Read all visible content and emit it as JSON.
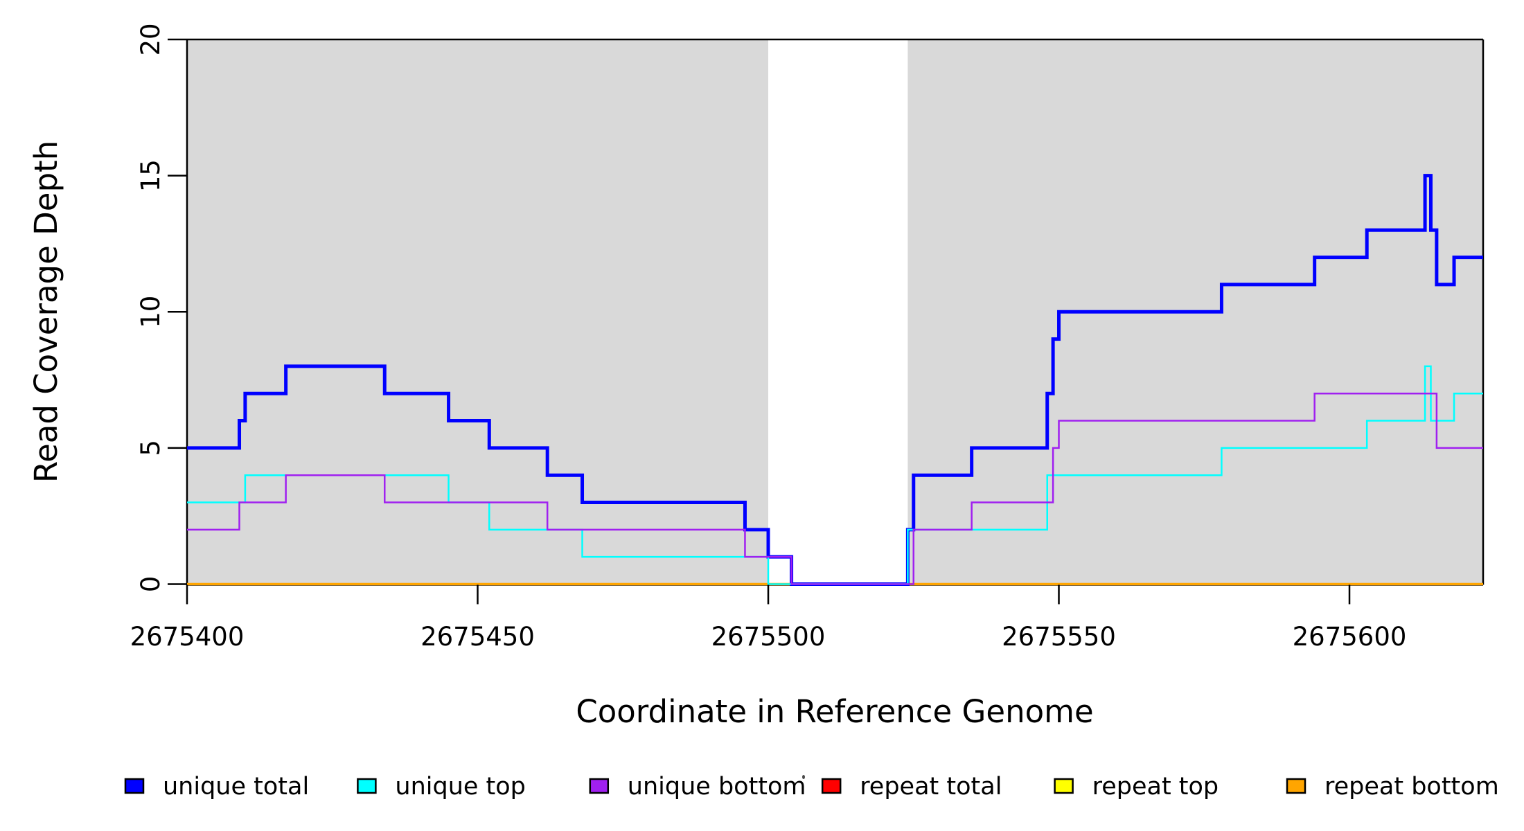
{
  "chart_data": {
    "type": "line",
    "subtype": "step-coverage",
    "title": "",
    "xlabel": "Coordinate in Reference Genome",
    "ylabel": "Read Coverage Depth",
    "xlim": [
      2675400,
      2675623
    ],
    "ylim": [
      0,
      20
    ],
    "x_ticks": [
      2675400,
      2675450,
      2675500,
      2675550,
      2675600
    ],
    "x_tick_labels": [
      "2675400",
      "2675450",
      "2675500",
      "2675550",
      "2675600"
    ],
    "y_ticks": [
      0,
      5,
      10,
      15,
      20
    ],
    "y_tick_labels": [
      "0",
      "5",
      "10",
      "15",
      "20"
    ],
    "grid": false,
    "plot_background": "#ffffff",
    "shaded_regions": [
      {
        "name": "unique-region-1",
        "start": 2675400,
        "end": 2675500,
        "color": "#d9d9d9"
      },
      {
        "name": "unique-region-2",
        "start": 2675524,
        "end": 2675623,
        "color": "#d9d9d9"
      }
    ],
    "series": [
      {
        "name": "repeat total",
        "color": "#ff0000",
        "line_width": 2.5,
        "end_x": 2675623,
        "steps": [
          [
            2675400,
            0
          ]
        ]
      },
      {
        "name": "repeat top",
        "color": "#ffff00",
        "line_width": 2.5,
        "end_x": 2675623,
        "steps": [
          [
            2675400,
            0
          ]
        ]
      },
      {
        "name": "repeat bottom",
        "color": "#ffa500",
        "line_width": 3.5,
        "end_x": 2675623,
        "steps": [
          [
            2675400,
            0
          ]
        ]
      },
      {
        "name": "unique total",
        "color": "#0000ff",
        "line_width": 5,
        "end_x": 2675623,
        "steps": [
          [
            2675400,
            5
          ],
          [
            2675409,
            6
          ],
          [
            2675410,
            7
          ],
          [
            2675417,
            8
          ],
          [
            2675434,
            7
          ],
          [
            2675445,
            6
          ],
          [
            2675452,
            5
          ],
          [
            2675462,
            4
          ],
          [
            2675468,
            3
          ],
          [
            2675496,
            2
          ],
          [
            2675500,
            1
          ],
          [
            2675504,
            0
          ],
          [
            2675524,
            2
          ],
          [
            2675525,
            4
          ],
          [
            2675535,
            5
          ],
          [
            2675548,
            7
          ],
          [
            2675549,
            9
          ],
          [
            2675550,
            10
          ],
          [
            2675578,
            11
          ],
          [
            2675594,
            12
          ],
          [
            2675603,
            13
          ],
          [
            2675613,
            15
          ],
          [
            2675614,
            13
          ],
          [
            2675615,
            11
          ],
          [
            2675618,
            12
          ]
        ]
      },
      {
        "name": "unique top",
        "color": "#00ffff",
        "line_width": 2.5,
        "end_x": 2675623,
        "steps": [
          [
            2675400,
            3
          ],
          [
            2675410,
            4
          ],
          [
            2675445,
            3
          ],
          [
            2675452,
            2
          ],
          [
            2675468,
            1
          ],
          [
            2675500,
            0
          ],
          [
            2675524,
            2
          ],
          [
            2675548,
            4
          ],
          [
            2675578,
            5
          ],
          [
            2675603,
            6
          ],
          [
            2675613,
            8
          ],
          [
            2675614,
            6
          ],
          [
            2675618,
            7
          ]
        ]
      },
      {
        "name": "unique bottom",
        "color": "#a020f0",
        "line_width": 2.5,
        "end_x": 2675623,
        "steps": [
          [
            2675400,
            2
          ],
          [
            2675409,
            3
          ],
          [
            2675417,
            4
          ],
          [
            2675434,
            3
          ],
          [
            2675462,
            2
          ],
          [
            2675496,
            1
          ],
          [
            2675504,
            0
          ],
          [
            2675525,
            2
          ],
          [
            2675535,
            3
          ],
          [
            2675549,
            5
          ],
          [
            2675550,
            6
          ],
          [
            2675594,
            7
          ],
          [
            2675615,
            5
          ]
        ]
      }
    ],
    "legend": {
      "position": "bottom",
      "items": [
        {
          "label": "unique total",
          "color": "#0000ff"
        },
        {
          "label": "unique top",
          "color": "#00ffff"
        },
        {
          "label": "unique bottom",
          "color": "#a020f0"
        },
        {
          "label": "repeat total",
          "color": "#ff0000"
        },
        {
          "label": "repeat top",
          "color": "#ffff00"
        },
        {
          "label": "repeat bottom",
          "color": "#ffa500"
        }
      ]
    },
    "axis_color": "#000000"
  }
}
